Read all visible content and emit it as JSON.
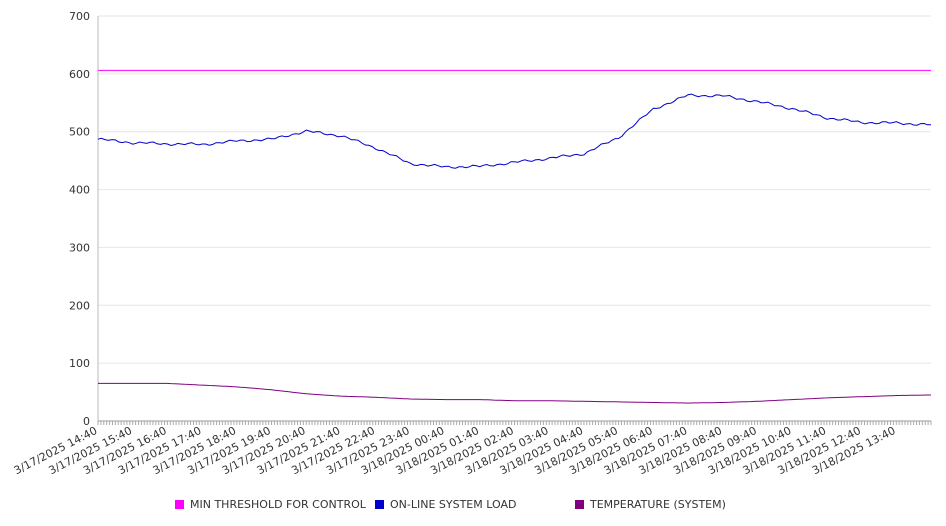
{
  "chart_data": {
    "type": "line",
    "title": "",
    "xlabel": "",
    "ylabel": "",
    "ylim": [
      0,
      700
    ],
    "yticks": [
      0,
      100,
      200,
      300,
      400,
      500,
      600,
      700
    ],
    "grid": "horizontal",
    "legend_position": "bottom",
    "x_labels": [
      "3/17/2025 14:40",
      "3/17/2025 15:40",
      "3/17/2025 16:40",
      "3/17/2025 17:40",
      "3/17/2025 18:40",
      "3/17/2025 19:40",
      "3/17/2025 20:40",
      "3/17/2025 21:40",
      "3/17/2025 22:40",
      "3/17/2025 23:40",
      "3/18/2025 00:40",
      "3/18/2025 01:40",
      "3/18/2025 02:40",
      "3/18/2025 03:40",
      "3/18/2025 04:40",
      "3/18/2025 05:40",
      "3/18/2025 06:40",
      "3/18/2025 07:40",
      "3/18/2025 08:40",
      "3/18/2025 09:40",
      "3/18/2025 10:40",
      "3/18/2025 11:40",
      "3/18/2025 12:40",
      "3/18/2025 13:40"
    ],
    "x": [
      "3/17/2025 14:40",
      "3/17/2025 15:40",
      "3/17/2025 16:40",
      "3/17/2025 17:40",
      "3/17/2025 18:40",
      "3/17/2025 19:40",
      "3/17/2025 20:40",
      "3/17/2025 21:40",
      "3/17/2025 22:40",
      "3/17/2025 23:40",
      "3/18/2025 00:40",
      "3/18/2025 01:40",
      "3/18/2025 02:40",
      "3/18/2025 03:40",
      "3/18/2025 04:40",
      "3/18/2025 05:40",
      "3/18/2025 06:40",
      "3/18/2025 07:40",
      "3/18/2025 08:40",
      "3/18/2025 09:40",
      "3/18/2025 10:40",
      "3/18/2025 11:40",
      "3/18/2025 12:40",
      "3/18/2025 13:40",
      "3/18/2025 14:40"
    ],
    "series": [
      {
        "name": "MIN THRESHOLD FOR CONTROL",
        "color": "#ff00ff",
        "values": [
          606,
          606,
          606,
          606,
          606,
          606,
          606,
          606,
          606,
          606,
          606,
          606,
          606,
          606,
          606,
          606,
          606,
          606,
          606,
          606,
          606,
          606,
          606,
          606,
          606
        ]
      },
      {
        "name": "ON-LINE SYSTEM LOAD",
        "color": "#0000cc",
        "values": [
          487,
          481,
          479,
          478,
          484,
          487,
          501,
          493,
          472,
          445,
          439,
          440,
          447,
          454,
          462,
          490,
          539,
          563,
          562,
          552,
          540,
          524,
          516,
          515,
          512
        ]
      },
      {
        "name": "TEMPERATURE (SYSTEM)",
        "color": "#800080",
        "values": [
          65,
          65,
          65,
          62,
          59,
          54,
          47,
          43,
          41,
          38,
          37,
          37,
          35,
          35,
          34,
          33,
          32,
          31,
          32,
          34,
          37,
          40,
          42,
          44,
          45
        ]
      }
    ]
  }
}
